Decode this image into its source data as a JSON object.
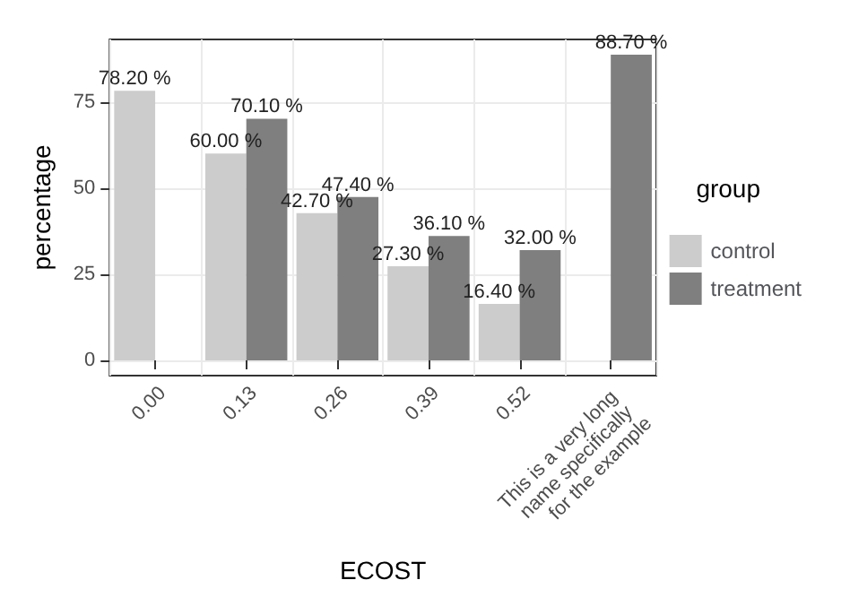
{
  "chart_data": {
    "type": "bar",
    "xlabel": "ECOST",
    "ylabel": "percentage",
    "legend_title": "group",
    "categories": [
      "0.00",
      "0.13",
      "0.26",
      "0.39",
      "0.52",
      "This is a very long name specifically for the example"
    ],
    "series": [
      {
        "name": "control",
        "color": "#cccccc",
        "values": [
          78.2,
          60,
          42.7,
          27.3,
          16.4,
          null
        ],
        "value_labels": [
          "78.20 %",
          "60.00 %",
          "42.70 %",
          "27.30 %",
          "16.40 %",
          null
        ]
      },
      {
        "name": "treatment",
        "color": "#7f7f7f",
        "values": [
          null,
          70.1,
          47.4,
          36.1,
          32,
          88.7
        ],
        "value_labels": [
          null,
          "70.10 %",
          "47.40 %",
          "36.10 %",
          "32.00 %",
          "88.70 %"
        ]
      }
    ],
    "ylim": [
      -4.4,
      93.1
    ],
    "yticks": [
      0,
      25,
      50,
      75
    ],
    "grid": true,
    "legend": "right"
  }
}
